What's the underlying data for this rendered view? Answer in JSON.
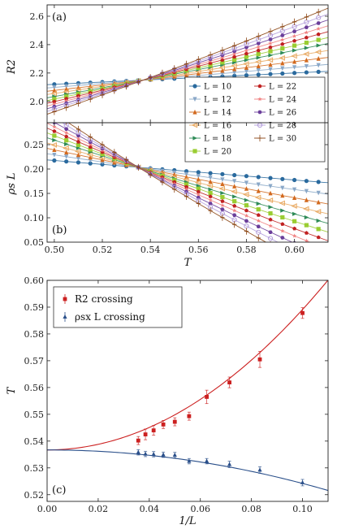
{
  "chart_data": [
    {
      "type": "line",
      "panel_label": "(a)",
      "xlabel": "",
      "ylabel": "R2",
      "xlim": [
        0.497,
        0.614
      ],
      "ylim": [
        1.85,
        2.68
      ],
      "xticks": [
        "0.50",
        "0.52",
        "0.54",
        "0.56",
        "0.58",
        "0.60"
      ],
      "yticks": [
        "2.0",
        "2.2",
        "2.4",
        "2.6"
      ],
      "crossing_T": 0.537,
      "crossing_value": 2.15,
      "T_points": [
        0.5,
        0.505,
        0.51,
        0.515,
        0.52,
        0.525,
        0.53,
        0.535,
        0.54,
        0.545,
        0.55,
        0.555,
        0.56,
        0.565,
        0.57,
        0.575,
        0.58,
        0.585,
        0.59,
        0.595,
        0.6,
        0.605,
        0.61
      ],
      "series": [
        {
          "name": "L = 10",
          "slope": 0.8,
          "curv": 0.0,
          "color": "#2a6a9e",
          "marker": "circle"
        },
        {
          "name": "L = 12",
          "slope": 1.4,
          "curv": 0.5,
          "color": "#8aa8c8",
          "marker": "tri-down"
        },
        {
          "name": "L = 14",
          "slope": 2.0,
          "curv": 1.0,
          "color": "#d2691e",
          "marker": "tri-up"
        },
        {
          "name": "L = 16",
          "slope": 2.6,
          "curv": 1.5,
          "color": "#e8a860",
          "marker": "tri-left"
        },
        {
          "name": "L = 18",
          "slope": 3.2,
          "curv": 2.0,
          "color": "#2e8b57",
          "marker": "tri-right"
        },
        {
          "name": "L = 20",
          "slope": 3.7,
          "curv": 2.5,
          "color": "#9acd32",
          "marker": "square"
        },
        {
          "name": "L = 22",
          "slope": 4.2,
          "curv": 3.0,
          "color": "#c02020",
          "marker": "pentagon"
        },
        {
          "name": "L = 24",
          "slope": 4.7,
          "curv": 3.5,
          "color": "#f08080",
          "marker": "star"
        },
        {
          "name": "L = 26",
          "slope": 5.2,
          "curv": 4.0,
          "color": "#6a3d9a",
          "marker": "hexagon"
        },
        {
          "name": "L = 28",
          "slope": 5.7,
          "curv": 4.5,
          "color": "#b39ddb",
          "marker": "circle-open"
        },
        {
          "name": "L = 30",
          "slope": 6.2,
          "curv": 5.0,
          "color": "#8b4513",
          "marker": "plus"
        }
      ],
      "legend": "lower-right"
    },
    {
      "type": "line",
      "panel_label": "(b)",
      "xlabel": "T",
      "ylabel": "ρs L",
      "xlim": [
        0.497,
        0.614
      ],
      "ylim": [
        0.05,
        0.295
      ],
      "xticks": [
        "0.50",
        "0.52",
        "0.54",
        "0.56",
        "0.58",
        "0.60"
      ],
      "yticks": [
        "0.05",
        "0.10",
        "0.15",
        "0.20",
        "0.25"
      ],
      "crossing_T": 0.535,
      "crossing_value": 0.2035,
      "T_points": [
        0.5,
        0.505,
        0.51,
        0.515,
        0.52,
        0.525,
        0.53,
        0.535,
        0.54,
        0.545,
        0.55,
        0.555,
        0.56,
        0.565,
        0.57,
        0.575,
        0.58,
        0.585,
        0.59,
        0.595,
        0.6,
        0.605,
        0.61
      ],
      "series": [
        {
          "name": "L = 10",
          "slope": -0.4,
          "curv": 0.0
        },
        {
          "name": "L = 12",
          "slope": -0.72,
          "curv": 0.3
        },
        {
          "name": "L = 14",
          "slope": -1.0,
          "curv": 0.6
        },
        {
          "name": "L = 16",
          "slope": -1.28,
          "curv": 0.9
        },
        {
          "name": "L = 18",
          "slope": -1.55,
          "curv": 1.2
        },
        {
          "name": "L = 20",
          "slope": -1.8,
          "curv": 1.5
        },
        {
          "name": "L = 22",
          "slope": -2.05,
          "curv": 1.8
        },
        {
          "name": "L = 24",
          "slope": -2.3,
          "curv": 2.1
        },
        {
          "name": "L = 26",
          "slope": -2.55,
          "curv": 2.4
        },
        {
          "name": "L = 28",
          "slope": -2.8,
          "curv": 2.7
        },
        {
          "name": "L = 30",
          "slope": -3.05,
          "curv": 3.0
        }
      ]
    },
    {
      "type": "scatter",
      "panel_label": "(c)",
      "xlabel": "1/L",
      "ylabel": "T",
      "xlim": [
        0.0,
        0.11
      ],
      "ylim": [
        0.5175,
        0.6
      ],
      "xticks": [
        "0.00",
        "0.02",
        "0.04",
        "0.06",
        "0.08",
        "0.10"
      ],
      "yticks": [
        "0.52",
        "0.53",
        "0.54",
        "0.55",
        "0.56",
        "0.57",
        "0.58",
        "0.59",
        "0.60"
      ],
      "series": [
        {
          "name": "R2 crossing",
          "color": "#cc2020",
          "marker": "square",
          "x": [
            0.0357,
            0.0385,
            0.0417,
            0.0455,
            0.05,
            0.0556,
            0.0625,
            0.0714,
            0.0833,
            0.1
          ],
          "y": [
            0.5402,
            0.5425,
            0.544,
            0.5462,
            0.5472,
            0.5493,
            0.5565,
            0.5619,
            0.5705,
            0.5878
          ],
          "err": [
            0.0015,
            0.002,
            0.0018,
            0.0015,
            0.0015,
            0.0015,
            0.0025,
            0.002,
            0.003,
            0.002
          ],
          "fit": {
            "a": 0.5367,
            "b": 0.0,
            "c": 5.24
          }
        },
        {
          "name": "ρsx L crossing",
          "color": "#2a4f8a",
          "marker": "triangle",
          "x": [
            0.0357,
            0.0385,
            0.0417,
            0.0455,
            0.05,
            0.0556,
            0.0625,
            0.0714,
            0.0833,
            0.1
          ],
          "y": [
            0.5358,
            0.5352,
            0.5351,
            0.5349,
            0.5348,
            0.5325,
            0.5325,
            0.5313,
            0.5292,
            0.5245
          ],
          "err": [
            0.001,
            0.001,
            0.001,
            0.001,
            0.001,
            0.001,
            0.001,
            0.0012,
            0.0012,
            0.0012
          ],
          "fit": {
            "a": 0.5367,
            "b": 0.0,
            "c": -1.25
          }
        }
      ],
      "legend": "top-left"
    }
  ]
}
